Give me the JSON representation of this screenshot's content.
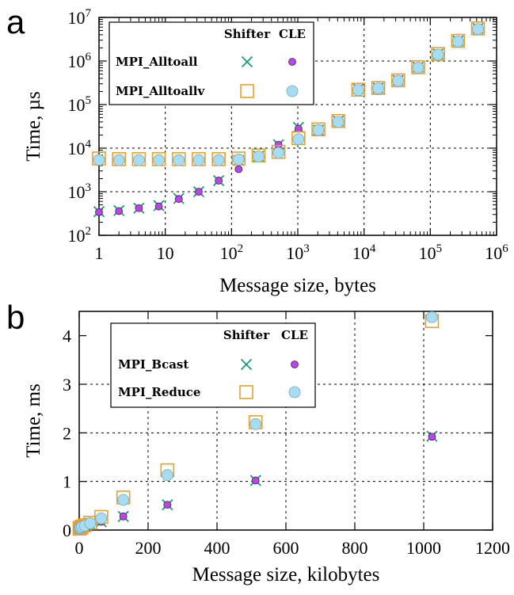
{
  "chart_data": [
    {
      "panel": "a",
      "type": "scatter",
      "xlabel": "Message size, bytes",
      "ylabel": "Time, µs",
      "xscale": "log",
      "yscale": "log",
      "xlim": [
        1,
        1000000
      ],
      "ylim": [
        100,
        10000000
      ],
      "x_ticks": [
        {
          "base": "1",
          "exp": ""
        },
        {
          "base": "10",
          "exp": ""
        },
        {
          "base": "10",
          "exp": "2"
        },
        {
          "base": "10",
          "exp": "3"
        },
        {
          "base": "10",
          "exp": "4"
        },
        {
          "base": "10",
          "exp": "5"
        },
        {
          "base": "10",
          "exp": "6"
        }
      ],
      "y_ticks": [
        {
          "base": "10",
          "exp": "2"
        },
        {
          "base": "10",
          "exp": "3"
        },
        {
          "base": "10",
          "exp": "4"
        },
        {
          "base": "10",
          "exp": "5"
        },
        {
          "base": "10",
          "exp": "6"
        },
        {
          "base": "10",
          "exp": "7"
        }
      ],
      "grid": true,
      "legend_position": "top-left",
      "legend_headers": [
        "Shifter",
        "CLE"
      ],
      "legend_rows": [
        "MPI_Alltoall",
        "MPI_Alltoallv"
      ],
      "x": [
        1,
        2,
        4,
        8,
        16,
        32,
        64,
        128,
        256,
        512,
        1024,
        2048,
        4096,
        8192,
        16384,
        32768,
        65536,
        131072,
        262144,
        524288
      ],
      "series": [
        {
          "name": "MPI_Alltoall",
          "variant": "Shifter",
          "marker": "x",
          "color": "#1a9a78",
          "values": [
            350,
            370,
            420,
            480,
            700,
            1000,
            1800,
            5200,
            6500,
            12000,
            30000,
            26000,
            42000,
            230000,
            240000,
            360000,
            720000,
            1450000,
            2900000,
            5600000
          ]
        },
        {
          "name": "MPI_Alltoall",
          "variant": "CLE",
          "marker": "dot",
          "color": "#bb44ee",
          "values": [
            340,
            360,
            420,
            460,
            680,
            1000,
            1800,
            3300,
            6000,
            12000,
            28000,
            25000,
            42000,
            220000,
            240000,
            350000,
            710000,
            1400000,
            2800000,
            5500000
          ]
        },
        {
          "name": "MPI_Alltoallv",
          "variant": "Shifter",
          "marker": "square",
          "color": "#e8a030",
          "values": [
            5800,
            5600,
            5600,
            5600,
            5600,
            5600,
            5600,
            5800,
            6800,
            8200,
            17000,
            27000,
            42000,
            220000,
            240000,
            360000,
            720000,
            1450000,
            2900000,
            5600000
          ]
        },
        {
          "name": "MPI_Alltoallv",
          "variant": "CLE",
          "marker": "circle",
          "color": "#a8dcf0",
          "values": [
            5400,
            5300,
            5300,
            5300,
            5300,
            5300,
            5300,
            5500,
            6400,
            7800,
            16000,
            26000,
            40000,
            215000,
            235000,
            350000,
            700000,
            1400000,
            2800000,
            5400000
          ]
        }
      ]
    },
    {
      "panel": "b",
      "type": "scatter",
      "xlabel": "Message size, kilobytes",
      "ylabel": "Time, ms",
      "xlim": [
        0,
        1200
      ],
      "ylim": [
        0,
        4.5
      ],
      "x_ticks": [
        "0",
        "200",
        "400",
        "600",
        "800",
        "1000",
        "1200"
      ],
      "y_ticks": [
        "0",
        "1",
        "2",
        "3",
        "4"
      ],
      "x_tick_values": [
        0,
        200,
        400,
        600,
        800,
        1000,
        1200
      ],
      "y_tick_values": [
        0,
        1,
        2,
        3,
        4
      ],
      "grid": true,
      "legend_position": "top-left",
      "legend_headers": [
        "Shifter",
        "CLE"
      ],
      "legend_rows": [
        "MPI_Bcast",
        "MPI_Reduce"
      ],
      "x": [
        1,
        2,
        4,
        8,
        16,
        32,
        64,
        128,
        256,
        512,
        1024
      ],
      "series": [
        {
          "name": "MPI_Bcast",
          "variant": "Shifter",
          "marker": "x",
          "color": "#1a9a78",
          "values": [
            0.02,
            0.03,
            0.04,
            0.06,
            0.08,
            0.12,
            0.17,
            0.28,
            0.52,
            1.02,
            1.93
          ]
        },
        {
          "name": "MPI_Bcast",
          "variant": "CLE",
          "marker": "dot",
          "color": "#bb44ee",
          "values": [
            0.02,
            0.03,
            0.04,
            0.06,
            0.08,
            0.12,
            0.17,
            0.28,
            0.52,
            1.02,
            1.92
          ]
        },
        {
          "name": "MPI_Reduce",
          "variant": "Shifter",
          "marker": "square",
          "color": "#e8a030",
          "values": [
            0.03,
            0.04,
            0.05,
            0.07,
            0.1,
            0.15,
            0.27,
            0.67,
            1.23,
            2.22,
            4.3
          ]
        },
        {
          "name": "MPI_Reduce",
          "variant": "CLE",
          "marker": "circle",
          "color": "#a8dcf0",
          "values": [
            0.03,
            0.04,
            0.05,
            0.07,
            0.09,
            0.14,
            0.24,
            0.62,
            1.13,
            2.18,
            4.38
          ]
        }
      ]
    }
  ]
}
